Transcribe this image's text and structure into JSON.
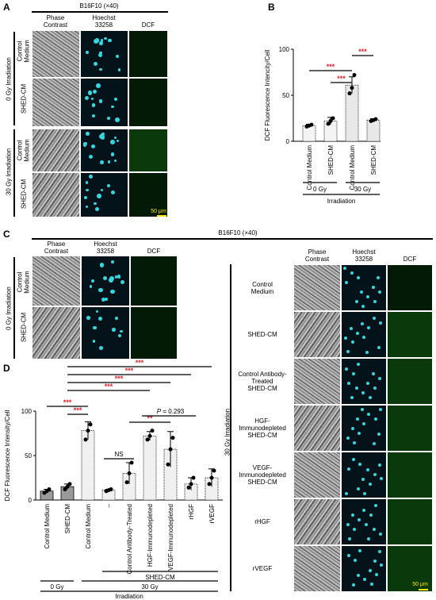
{
  "panelA": {
    "letter": "A",
    "header": "B16F10 (×40)",
    "col_phase": "Phase\nContrast",
    "col_phase_1": "Phase",
    "col_phase_2": "Contrast",
    "col_hoechst_1": "Hoechst",
    "col_hoechst_2": "33258",
    "col_dcf": "DCF",
    "group_0gy": "0 Gy Irradiation",
    "group_30gy": "30 Gy Irradiation",
    "row_control_1": "Control",
    "row_control_2": "Medium",
    "row_shed": "SHED-CM",
    "scalebar": "50 μm"
  },
  "panelB": {
    "letter": "B",
    "significance": [
      "***",
      "***",
      "***"
    ]
  },
  "panelC": {
    "letter": "C",
    "header": "B16F10 (×40)",
    "col_phase_1": "Phase",
    "col_phase_2": "Contrast",
    "col_hoechst_1": "Hoechst",
    "col_hoechst_2": "33258",
    "col_dcf": "DCF",
    "group_0gy": "0 Gy Irradiation",
    "group_30gy": "30 Gy Irradiation",
    "row_control_1": "Control",
    "row_control_2": "Medium",
    "row_shed": "SHED-CM",
    "right_rows": [
      [
        "Control",
        "Medium"
      ],
      [
        "SHED-CM"
      ],
      [
        "Control Antibody-",
        "Treated",
        "SHED-CM"
      ],
      [
        "HGF-",
        "Immunodepleted",
        "SHED-CM"
      ],
      [
        "VEGF-",
        "Immunodepleted",
        "SHED-CM"
      ],
      [
        "rHGF"
      ],
      [
        "rVEGF"
      ]
    ],
    "scalebar": "50 μm"
  },
  "panelD": {
    "letter": "D",
    "ns": "NS",
    "p_label": "P",
    "p_value": " = 0.293",
    "sig_stars": [
      "***",
      "***",
      "***",
      "***",
      "***",
      "***",
      "**"
    ]
  },
  "chart_data": [
    {
      "type": "bar",
      "panel": "B",
      "ylabel": "DCF Fluorescence Intencity/Cell",
      "ylim": [
        0,
        100
      ],
      "yticks": [
        0,
        50,
        100
      ],
      "categories": [
        "Control Medium",
        "SHED-CM",
        "Control Medium",
        "SHED-CM"
      ],
      "dose_groups": [
        "0 Gy",
        "30 Gy"
      ],
      "group_label": "Irradiation",
      "values": [
        17,
        22,
        61,
        23
      ],
      "errors": [
        1.5,
        4,
        9,
        1.5
      ],
      "points": [
        [
          16,
          17,
          18
        ],
        [
          19,
          22,
          25
        ],
        [
          52,
          58,
          72
        ],
        [
          22,
          23,
          24
        ]
      ],
      "bar_fill": [
        "#333333",
        "#333333",
        "#dcdcdc",
        "#dcdcdc"
      ]
    },
    {
      "type": "bar",
      "panel": "D",
      "ylabel": "DCF Fluorescence Intensity/Cell",
      "ylim": [
        0,
        100
      ],
      "yticks": [
        0,
        50,
        100
      ],
      "categories": [
        "Control Medium",
        "SHED-CM",
        "Control Medium",
        "–",
        "Control Antibody-Treated",
        "HGF-Immunodepleted",
        "VEGF-Immunodepleted",
        "rHGF",
        "rVEGF"
      ],
      "shed_group_label": "SHED-CM",
      "dose_groups": [
        "0 Gy",
        "30 Gy"
      ],
      "group_label": "Irradiation",
      "values": [
        10,
        15,
        78,
        11,
        30,
        72,
        57,
        18,
        25
      ],
      "errors": [
        2,
        3,
        10,
        1,
        12,
        5,
        20,
        7,
        10
      ],
      "points": [
        [
          8,
          10,
          12
        ],
        [
          12,
          15,
          18
        ],
        [
          68,
          78,
          85
        ],
        [
          10,
          11,
          12
        ],
        [
          20,
          30,
          42
        ],
        [
          68,
          72,
          78
        ],
        [
          40,
          57,
          70
        ],
        [
          14,
          18,
          25
        ],
        [
          18,
          25,
          33
        ]
      ],
      "bar_fill": [
        "#555555",
        "#555555",
        "#dcdcdc",
        "#dcdcdc",
        "#dcdcdc",
        "#dcdcdc",
        "#dcdcdc",
        "#dcdcdc",
        "#dcdcdc"
      ]
    }
  ]
}
